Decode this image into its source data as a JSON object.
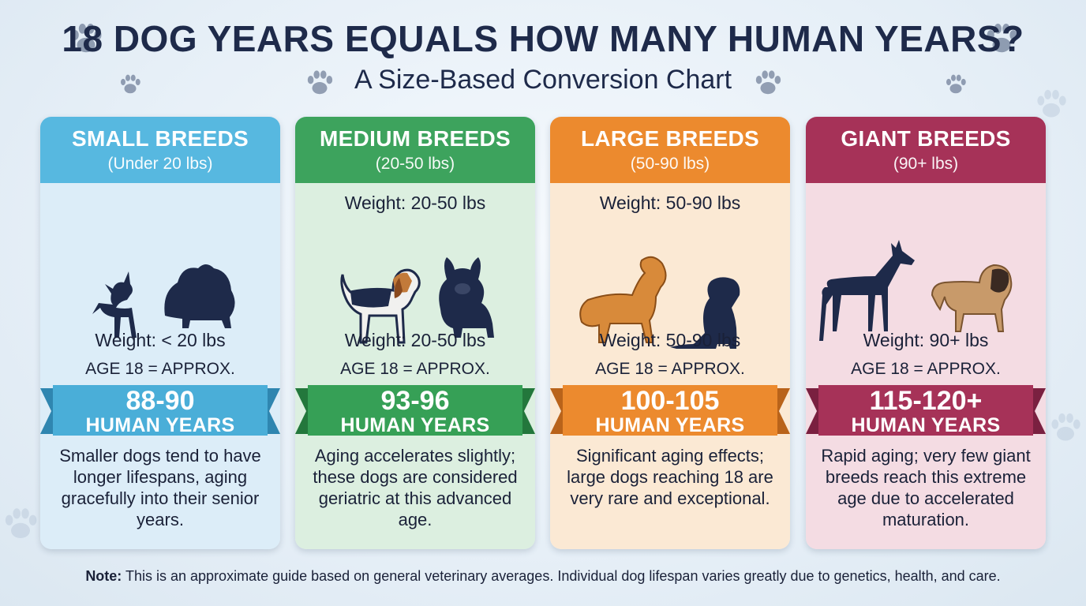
{
  "header": {
    "title": "18 DOG YEARS EQUALS HOW MANY HUMAN YEARS?",
    "subtitle": "A Size-Based Conversion Chart"
  },
  "cards": [
    {
      "name": "SMALL BREEDS",
      "range": "(Under 20 lbs)",
      "weight_top": "",
      "weight": "Weight: < 20 lbs",
      "approx": "AGE 18 = APPROX.",
      "years": "88-90",
      "human_years": "HUMAN YEARS",
      "description": "Smaller dogs tend to have longer lifespans, aging gracefully into their senior years.",
      "colors": {
        "header": "#57b8e0",
        "body": "#dcedf8",
        "ribbon": "#4aaed8",
        "ribbon_dark": "#2f86b0"
      },
      "icons": [
        "chihuahua-silhouette-icon",
        "pomeranian-silhouette-icon"
      ]
    },
    {
      "name": "MEDIUM BREEDS",
      "range": "(20-50 lbs)",
      "weight_top": "Weight: 20-50 lbs",
      "weight": "Weight: 20-50 lbs",
      "approx": "AGE 18 = APPROX.",
      "years": "93-96",
      "human_years": "HUMAN YEARS",
      "description": "Aging accelerates slightly; these dogs are considered geriatric at this advanced age.",
      "colors": {
        "header": "#3da35d",
        "body": "#dcefe0",
        "ribbon": "#36a056",
        "ribbon_dark": "#23773c"
      },
      "icons": [
        "beagle-icon",
        "french-bulldog-icon"
      ]
    },
    {
      "name": "LARGE BREEDS",
      "range": "(50-90 lbs)",
      "weight_top": "Weight: 50-90 lbs",
      "weight": "Weight: 50-90 lbs",
      "approx": "AGE 18 = APPROX.",
      "years": "100-105",
      "human_years": "HUMAN YEARS",
      "description": "Significant aging effects; large dogs reaching 18 are very rare and exceptional.",
      "colors": {
        "header": "#ec8a2e",
        "body": "#fbe9d4",
        "ribbon": "#ec8a2e",
        "ribbon_dark": "#b9631a"
      },
      "icons": [
        "golden-retriever-icon",
        "labrador-icon"
      ]
    },
    {
      "name": "GIANT BREEDS",
      "range": "(90+ lbs)",
      "weight_top": "",
      "weight": "Weight: 90+ lbs",
      "approx": "AGE 18 = APPROX.",
      "years": "115-120+",
      "human_years": "HUMAN YEARS",
      "description": "Rapid aging; very few giant breeds reach this extreme age due to accelerated maturation.",
      "colors": {
        "header": "#a63258",
        "body": "#f4dce3",
        "ribbon": "#a63258",
        "ribbon_dark": "#7a2040"
      },
      "icons": [
        "great-dane-icon",
        "mastiff-icon"
      ]
    }
  ],
  "note": {
    "label": "Note:",
    "text": "This is an approximate guide based on general veterinary averages. Individual dog lifespan varies greatly due to genetics, health, and care."
  }
}
